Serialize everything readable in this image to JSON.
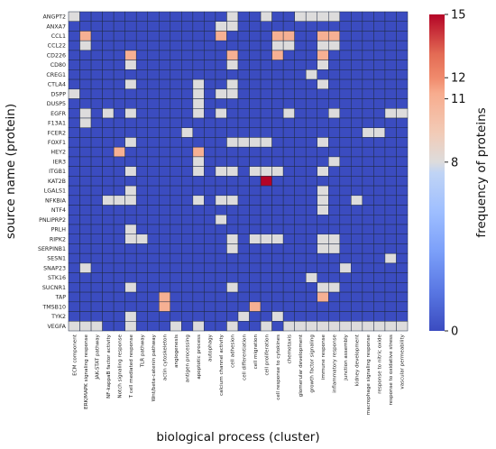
{
  "chart_data": {
    "type": "heatmap",
    "xlabel": "biological process (cluster)",
    "ylabel": "source name (protein)",
    "colorbar_label": "frequency of proteins",
    "colorbar_ticks": [
      0,
      8,
      11,
      12,
      15
    ],
    "value_range": [
      0,
      15
    ],
    "colormap": "coolwarm",
    "colors": {
      "low": "#3b4cc0",
      "mid": "#dddcdc",
      "high": "#b40426",
      "grid": "#1a1a2e"
    },
    "proteins": [
      "ANGPT2",
      "ANXA7",
      "CCL1",
      "CCL22",
      "CD226",
      "CD80",
      "CREG1",
      "CTLA4",
      "DSPP",
      "DUSP5",
      "EGFR",
      "F13A1",
      "FCER2",
      "FOXF1",
      "HEY2",
      "IER3",
      "ITGB1",
      "KAT2B",
      "LGALS1",
      "NFKBIA",
      "NTF4",
      "PNLIPRP2",
      "PRLH",
      "RIPK2",
      "SERPINB1",
      "SESN1",
      "SNAP23",
      "STK16",
      "SUCNR1",
      "TAP",
      "TMSB10",
      "TYK2",
      "VEGFA"
    ],
    "processes": [
      "ECM component",
      "ERK/MAPK signaling response",
      "JAK-STAT pathway",
      "NF-kappaB factor activity",
      "Notch signaling response",
      "T cell mediated response",
      "TLR pathway",
      "Wnt/beta-catenin pathway",
      "actin cytoskeleton",
      "angiogenesis",
      "antigen processing",
      "apoptotic process",
      "autophagy",
      "calcium channel activity",
      "cell adhesion",
      "cell differentiation",
      "cell migration",
      "cell proliferation",
      "cell response to cytokines",
      "chemotaxis",
      "glomerular development",
      "growth factor signaling",
      "immune response",
      "inflammatory response",
      "junction assembly",
      "kidney development",
      "macrophage signaling response",
      "response to nitric oxide",
      "response to oxidative stress",
      "vascular permeability"
    ],
    "values": [
      [
        8,
        0,
        0,
        0,
        0,
        0,
        0,
        0,
        0,
        0,
        0,
        0,
        0,
        0,
        8,
        0,
        0,
        8,
        0,
        0,
        8,
        8,
        8,
        8,
        0,
        0,
        0,
        0,
        0,
        0
      ],
      [
        0,
        0,
        0,
        0,
        0,
        0,
        0,
        0,
        0,
        0,
        0,
        0,
        0,
        8,
        8,
        0,
        0,
        0,
        0,
        0,
        0,
        0,
        0,
        0,
        0,
        0,
        0,
        0,
        0,
        0
      ],
      [
        0,
        11,
        0,
        0,
        0,
        0,
        0,
        0,
        0,
        0,
        0,
        0,
        0,
        11,
        0,
        0,
        0,
        0,
        11,
        11,
        0,
        0,
        11,
        11,
        0,
        0,
        0,
        0,
        0,
        0
      ],
      [
        0,
        8,
        0,
        0,
        0,
        0,
        0,
        0,
        0,
        0,
        0,
        0,
        0,
        0,
        0,
        0,
        0,
        0,
        8,
        8,
        0,
        0,
        8,
        8,
        0,
        0,
        0,
        0,
        0,
        0
      ],
      [
        0,
        0,
        0,
        0,
        0,
        11,
        0,
        0,
        0,
        0,
        0,
        0,
        0,
        0,
        11,
        0,
        0,
        0,
        11,
        0,
        0,
        0,
        11,
        0,
        0,
        0,
        0,
        0,
        0,
        0
      ],
      [
        0,
        0,
        0,
        0,
        0,
        8,
        0,
        0,
        0,
        0,
        0,
        0,
        0,
        0,
        8,
        0,
        0,
        0,
        0,
        0,
        0,
        0,
        8,
        0,
        0,
        0,
        0,
        0,
        0,
        0
      ],
      [
        0,
        0,
        0,
        0,
        0,
        0,
        0,
        0,
        0,
        0,
        0,
        0,
        0,
        0,
        0,
        0,
        0,
        0,
        0,
        0,
        0,
        8,
        0,
        0,
        0,
        0,
        0,
        0,
        0,
        0
      ],
      [
        0,
        0,
        0,
        0,
        0,
        8,
        0,
        0,
        0,
        0,
        0,
        8,
        0,
        0,
        8,
        0,
        0,
        0,
        0,
        0,
        0,
        0,
        8,
        0,
        0,
        0,
        0,
        0,
        0,
        0
      ],
      [
        8,
        0,
        0,
        0,
        0,
        0,
        0,
        0,
        0,
        0,
        0,
        8,
        0,
        8,
        8,
        0,
        0,
        0,
        0,
        0,
        0,
        0,
        0,
        0,
        0,
        0,
        0,
        0,
        0,
        0
      ],
      [
        0,
        0,
        0,
        0,
        0,
        0,
        0,
        0,
        0,
        0,
        0,
        8,
        0,
        0,
        0,
        0,
        0,
        0,
        0,
        0,
        0,
        0,
        0,
        0,
        0,
        0,
        0,
        0,
        0,
        0
      ],
      [
        0,
        8,
        0,
        8,
        0,
        8,
        0,
        0,
        0,
        0,
        0,
        8,
        0,
        8,
        0,
        0,
        0,
        0,
        0,
        8,
        0,
        0,
        0,
        8,
        0,
        0,
        0,
        0,
        8,
        8
      ],
      [
        0,
        8,
        0,
        0,
        0,
        0,
        0,
        0,
        0,
        0,
        0,
        0,
        0,
        0,
        0,
        0,
        0,
        0,
        0,
        0,
        0,
        0,
        0,
        0,
        0,
        0,
        0,
        0,
        0,
        0
      ],
      [
        0,
        0,
        0,
        0,
        0,
        0,
        0,
        0,
        0,
        0,
        8,
        0,
        0,
        0,
        0,
        0,
        0,
        0,
        0,
        0,
        0,
        0,
        0,
        0,
        0,
        0,
        8,
        8,
        0,
        0
      ],
      [
        0,
        0,
        0,
        0,
        0,
        8,
        0,
        0,
        0,
        0,
        0,
        0,
        0,
        0,
        8,
        8,
        8,
        8,
        0,
        0,
        0,
        0,
        8,
        0,
        0,
        0,
        0,
        0,
        0,
        0
      ],
      [
        0,
        0,
        0,
        0,
        11,
        0,
        0,
        0,
        0,
        0,
        0,
        11,
        0,
        0,
        0,
        0,
        0,
        0,
        0,
        0,
        0,
        0,
        0,
        0,
        0,
        0,
        0,
        0,
        0,
        0
      ],
      [
        0,
        0,
        0,
        0,
        0,
        0,
        0,
        0,
        0,
        0,
        0,
        8,
        0,
        0,
        0,
        0,
        0,
        0,
        0,
        0,
        0,
        0,
        0,
        8,
        0,
        0,
        0,
        0,
        0,
        0
      ],
      [
        0,
        0,
        0,
        0,
        0,
        8,
        0,
        0,
        0,
        0,
        0,
        8,
        0,
        8,
        8,
        0,
        8,
        8,
        8,
        0,
        0,
        0,
        8,
        0,
        0,
        0,
        0,
        0,
        0,
        0
      ],
      [
        0,
        0,
        0,
        0,
        0,
        0,
        0,
        0,
        0,
        0,
        0,
        0,
        0,
        0,
        0,
        0,
        0,
        15,
        0,
        0,
        0,
        0,
        0,
        0,
        0,
        0,
        0,
        0,
        0,
        0
      ],
      [
        0,
        0,
        0,
        0,
        0,
        8,
        0,
        0,
        0,
        0,
        0,
        0,
        0,
        0,
        0,
        0,
        0,
        0,
        0,
        0,
        0,
        0,
        8,
        0,
        0,
        0,
        0,
        0,
        0,
        0
      ],
      [
        0,
        0,
        0,
        8,
        8,
        8,
        0,
        0,
        0,
        0,
        0,
        8,
        0,
        8,
        8,
        0,
        0,
        0,
        0,
        0,
        0,
        0,
        8,
        0,
        0,
        8,
        0,
        0,
        0,
        0
      ],
      [
        0,
        0,
        0,
        0,
        0,
        0,
        0,
        0,
        0,
        0,
        0,
        0,
        0,
        0,
        0,
        0,
        0,
        0,
        0,
        0,
        0,
        0,
        8,
        0,
        0,
        0,
        0,
        0,
        0,
        0
      ],
      [
        0,
        0,
        0,
        0,
        0,
        0,
        0,
        0,
        0,
        0,
        0,
        0,
        0,
        8,
        0,
        0,
        0,
        0,
        0,
        0,
        0,
        0,
        0,
        0,
        0,
        0,
        0,
        0,
        0,
        0
      ],
      [
        0,
        0,
        0,
        0,
        0,
        8,
        0,
        0,
        0,
        0,
        0,
        0,
        0,
        0,
        0,
        0,
        0,
        0,
        0,
        0,
        0,
        0,
        0,
        0,
        0,
        0,
        0,
        0,
        0,
        0
      ],
      [
        0,
        0,
        0,
        0,
        0,
        8,
        8,
        0,
        0,
        0,
        0,
        0,
        0,
        0,
        8,
        0,
        8,
        8,
        8,
        0,
        0,
        0,
        8,
        8,
        0,
        0,
        0,
        0,
        0,
        0
      ],
      [
        0,
        0,
        0,
        0,
        0,
        0,
        0,
        0,
        0,
        0,
        0,
        0,
        0,
        0,
        8,
        0,
        0,
        0,
        0,
        0,
        0,
        0,
        8,
        8,
        0,
        0,
        0,
        0,
        0,
        0
      ],
      [
        0,
        0,
        0,
        0,
        0,
        0,
        0,
        0,
        0,
        0,
        0,
        0,
        0,
        0,
        0,
        0,
        0,
        0,
        0,
        0,
        0,
        0,
        0,
        0,
        0,
        0,
        0,
        0,
        8,
        0
      ],
      [
        0,
        8,
        0,
        0,
        0,
        0,
        0,
        0,
        0,
        0,
        0,
        0,
        0,
        0,
        0,
        0,
        0,
        0,
        0,
        0,
        0,
        0,
        0,
        0,
        8,
        0,
        0,
        0,
        0,
        0
      ],
      [
        0,
        0,
        0,
        0,
        0,
        0,
        0,
        0,
        0,
        0,
        0,
        0,
        0,
        0,
        0,
        0,
        0,
        0,
        0,
        0,
        0,
        8,
        0,
        0,
        0,
        0,
        0,
        0,
        0,
        0
      ],
      [
        0,
        0,
        0,
        0,
        0,
        8,
        0,
        0,
        0,
        0,
        0,
        0,
        0,
        0,
        8,
        0,
        0,
        0,
        0,
        0,
        0,
        0,
        8,
        8,
        0,
        0,
        0,
        0,
        0,
        0
      ],
      [
        0,
        0,
        0,
        0,
        0,
        0,
        0,
        0,
        11,
        0,
        0,
        0,
        0,
        0,
        0,
        0,
        0,
        0,
        0,
        0,
        0,
        0,
        11,
        0,
        0,
        0,
        0,
        0,
        0,
        0
      ],
      [
        0,
        0,
        0,
        0,
        0,
        0,
        0,
        0,
        11,
        0,
        0,
        0,
        0,
        0,
        0,
        0,
        11,
        0,
        0,
        0,
        0,
        0,
        0,
        0,
        0,
        0,
        0,
        0,
        0,
        0
      ],
      [
        0,
        0,
        0,
        0,
        0,
        8,
        0,
        0,
        0,
        0,
        0,
        0,
        0,
        0,
        0,
        8,
        0,
        0,
        8,
        0,
        0,
        0,
        0,
        0,
        0,
        0,
        0,
        0,
        0,
        0
      ],
      [
        8,
        8,
        8,
        0,
        0,
        8,
        0,
        0,
        0,
        8,
        0,
        8,
        0,
        0,
        8,
        0,
        0,
        8,
        0,
        8,
        8,
        8,
        8,
        8,
        8,
        8,
        8,
        8,
        8,
        8
      ]
    ]
  }
}
